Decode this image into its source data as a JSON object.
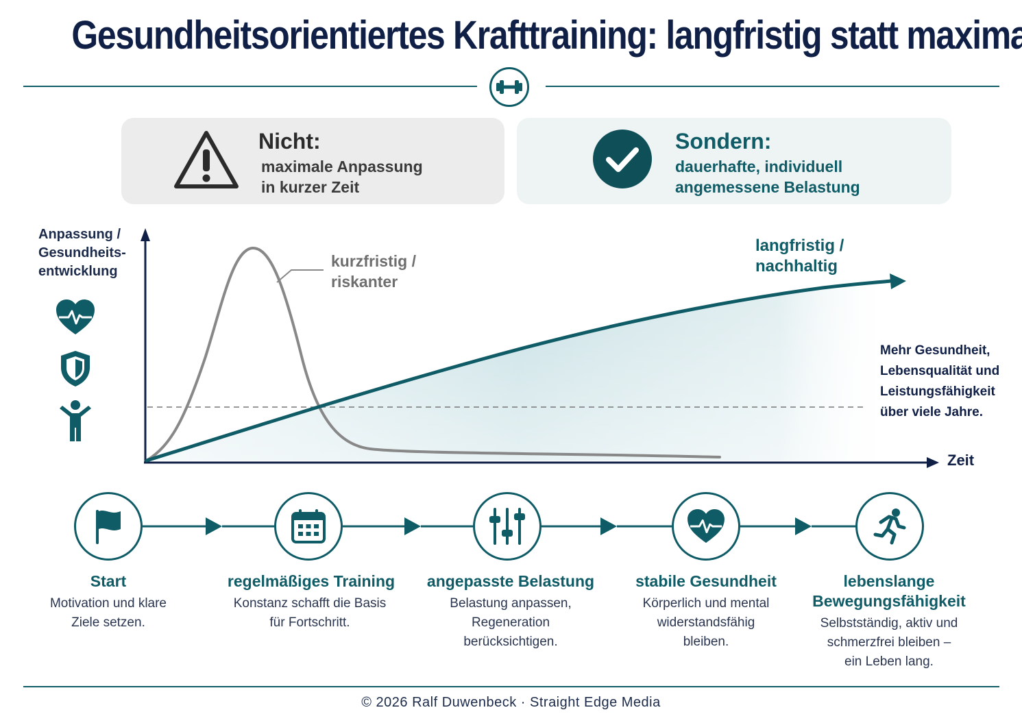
{
  "header": {
    "title": "Gesundheitsorientiertes Krafttraining: langfristig statt maximal"
  },
  "comparison": {
    "not": {
      "heading": "Nicht:",
      "line1": "maximale Anpassung",
      "line2": "in kurzer Zeit"
    },
    "but": {
      "heading": "Sondern:",
      "line1": "dauerhafte, individuell",
      "line2": "angemessene Belastung"
    }
  },
  "chart": {
    "y_label": [
      "Anpassung /",
      "Gesundheits-",
      "entwicklung"
    ],
    "x_label": "Zeit",
    "short_term_label": [
      "kurzfristig /",
      "riskanter"
    ],
    "long_term_label": [
      "langfristig /",
      "nachhaltig"
    ],
    "benefit_text": [
      "Mehr Gesundheit,",
      "Lebensqualität und",
      "Leistungsfähigkeit",
      "über viele Jahre."
    ]
  },
  "steps": [
    {
      "icon": "flag-icon",
      "title": "Start",
      "desc": [
        "Motivation und klare",
        "Ziele setzen."
      ]
    },
    {
      "icon": "calendar-icon",
      "title": "regelmäßiges Training",
      "desc": [
        "Konstanz schafft die Basis",
        "für Fortschritt."
      ]
    },
    {
      "icon": "sliders-icon",
      "title": "angepasste Belastung",
      "desc": [
        "Belastung anpassen,",
        "Regeneration",
        "berücksichtigen."
      ]
    },
    {
      "icon": "heart-pulse-icon",
      "title": "stabile Gesundheit",
      "desc": [
        "Körperlich und mental",
        "widerstandsfähig",
        "bleiben."
      ]
    },
    {
      "icon": "runner-icon",
      "title": [
        "lebenslange",
        "Bewegungsfähigkeit"
      ],
      "desc": [
        "Selbstständig, aktiv und",
        "schmerzfrei bleiben –",
        "ein Leben lang."
      ]
    }
  ],
  "footer": {
    "copyright": "© 2026 Ralf Duwenbeck · Straight Edge Media"
  },
  "colors": {
    "teal": "#0f5b66",
    "navy": "#0f1f45",
    "gray": "#8a8a8a"
  }
}
